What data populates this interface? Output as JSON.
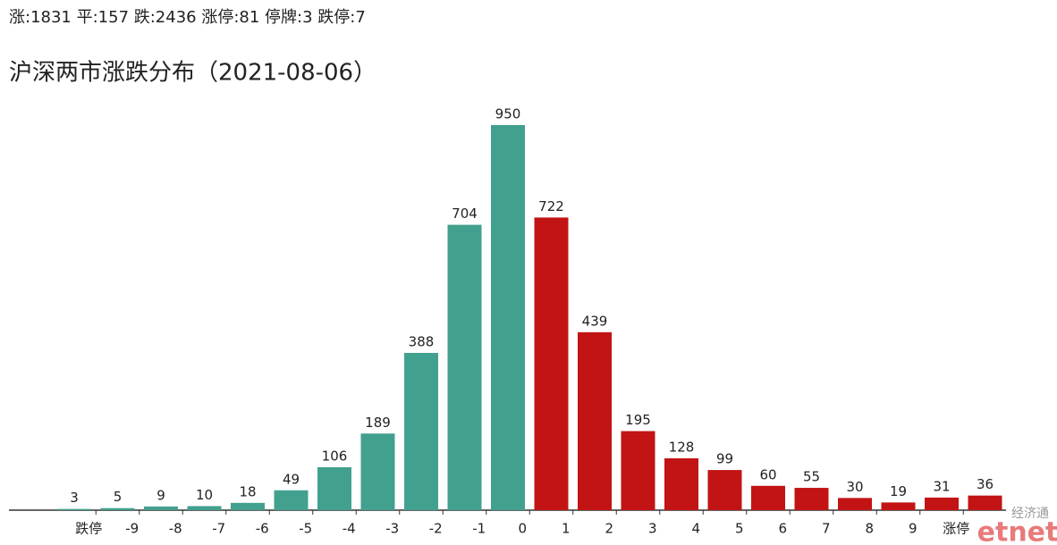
{
  "summary": "涨:1831 平:157 跌:2436 涨停:81 停牌:3 跌停:7",
  "chart_data": {
    "type": "bar",
    "title": "沪深两市涨跌分布（2021-08-06）",
    "categories": [
      null,
      null,
      null,
      null,
      null,
      null,
      null,
      null,
      null,
      null,
      null,
      null,
      null,
      null,
      null,
      null,
      null,
      null,
      null,
      null,
      null,
      null
    ],
    "values": [
      3,
      5,
      9,
      10,
      18,
      49,
      106,
      189,
      388,
      704,
      950,
      722,
      439,
      195,
      128,
      99,
      60,
      55,
      30,
      19,
      31,
      36
    ],
    "colors": [
      "#42a18e",
      "#42a18e",
      "#42a18e",
      "#42a18e",
      "#42a18e",
      "#42a18e",
      "#42a18e",
      "#42a18e",
      "#42a18e",
      "#42a18e",
      "#42a18e",
      "#c21414",
      "#c21414",
      "#c21414",
      "#c21414",
      "#c21414",
      "#c21414",
      "#c21414",
      "#c21414",
      "#c21414",
      "#c21414",
      "#c21414"
    ],
    "boundary_labels": [
      "跌停",
      "-9",
      "-8",
      "-7",
      "-6",
      "-5",
      "-4",
      "-3",
      "-2",
      "-1",
      "0",
      "1",
      "2",
      "3",
      "4",
      "5",
      "6",
      "7",
      "8",
      "9",
      "涨停"
    ]
  },
  "watermark": {
    "top": "经济通",
    "bottom": "etnet"
  }
}
